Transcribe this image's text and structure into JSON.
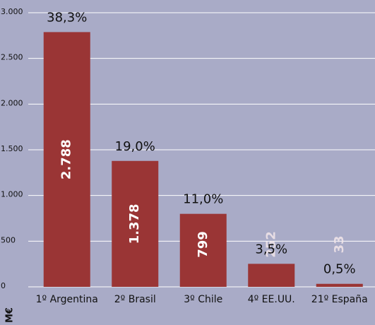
{
  "chart_data": {
    "type": "bar",
    "categories": [
      "1º Argentina",
      "2º Brasil",
      "3º Chile",
      "4º EE.UU.",
      "21º España"
    ],
    "values": [
      2788,
      1378,
      799,
      252,
      33
    ],
    "value_labels": [
      "2.788",
      "1.378",
      "799",
      "252",
      "33"
    ],
    "annotations": [
      "38,3%",
      "19,0%",
      "11,0%",
      "3,5%",
      "0,5%"
    ],
    "color": "#9a3535",
    "ylabel": "M€",
    "ylim": [
      0,
      3000
    ],
    "yticks": [
      0,
      500,
      {
        "value": 1000,
        "label": "1.000"
      },
      {
        "value": 1500,
        "label": "1.500"
      },
      {
        "value": 2000,
        "label": "2.000"
      },
      {
        "value": 2500,
        "label": "2.500"
      },
      {
        "value": 3000,
        "label": "3.000"
      }
    ],
    "grid": true
  }
}
